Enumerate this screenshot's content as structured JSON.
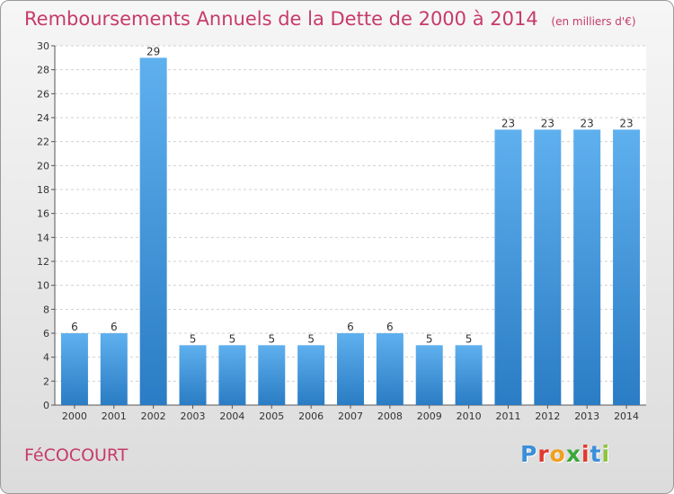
{
  "header": {
    "title": "Remboursements Annuels de la Dette de 2000 à 2014",
    "unit": "(en milliers d'€)"
  },
  "footer": {
    "town": "FéCOCOURT",
    "logo_letters": [
      "P",
      "r",
      "o",
      "x",
      "i",
      "t",
      "i"
    ],
    "logo_colors": [
      "#3a8fd8",
      "#e03a2f",
      "#f0a020",
      "#3aa83a",
      "#e03a2f",
      "#3a8fd8",
      "#8cc43a"
    ]
  },
  "colors": {
    "bar": "#3a8fd8",
    "bar_light": "#5fb0ee",
    "title": "#c73a6a"
  },
  "chart_data": {
    "type": "bar",
    "title": "Remboursements Annuels de la Dette de 2000 à 2014",
    "xlabel": "",
    "ylabel": "(en milliers d'€)",
    "categories": [
      "2000",
      "2001",
      "2002",
      "2003",
      "2004",
      "2005",
      "2006",
      "2007",
      "2008",
      "2009",
      "2010",
      "2011",
      "2012",
      "2013",
      "2014"
    ],
    "values": [
      6,
      6,
      29,
      5,
      5,
      5,
      5,
      6,
      6,
      5,
      5,
      23,
      23,
      23,
      23
    ],
    "ylim": [
      0,
      30
    ],
    "yticks": [
      0,
      2,
      4,
      6,
      8,
      10,
      12,
      14,
      16,
      18,
      20,
      22,
      24,
      26,
      28,
      30
    ],
    "grid": true
  }
}
